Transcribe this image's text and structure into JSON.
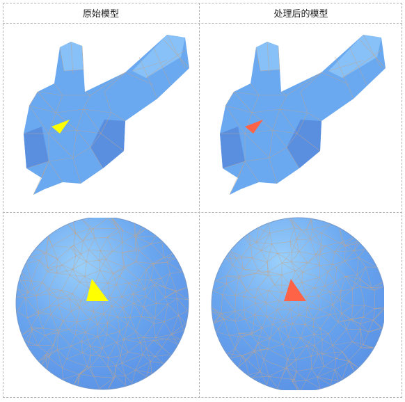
{
  "headers": {
    "left": "原始模型",
    "right": "处理后的模型"
  },
  "panels": [
    {
      "model": "bunny",
      "variant": "original",
      "highlight_color": "#ffff00"
    },
    {
      "model": "bunny",
      "variant": "processed",
      "highlight_color": "#ff6347"
    },
    {
      "model": "sphere",
      "variant": "original",
      "highlight_color": "#ffff00"
    },
    {
      "model": "sphere",
      "variant": "processed",
      "highlight_color": "#ff6347"
    }
  ],
  "colors": {
    "mesh_fill": "#6aa8f0",
    "mesh_light": "#9fd2fb",
    "mesh_dark": "#4f86dd",
    "wire": "#b8a08a"
  }
}
